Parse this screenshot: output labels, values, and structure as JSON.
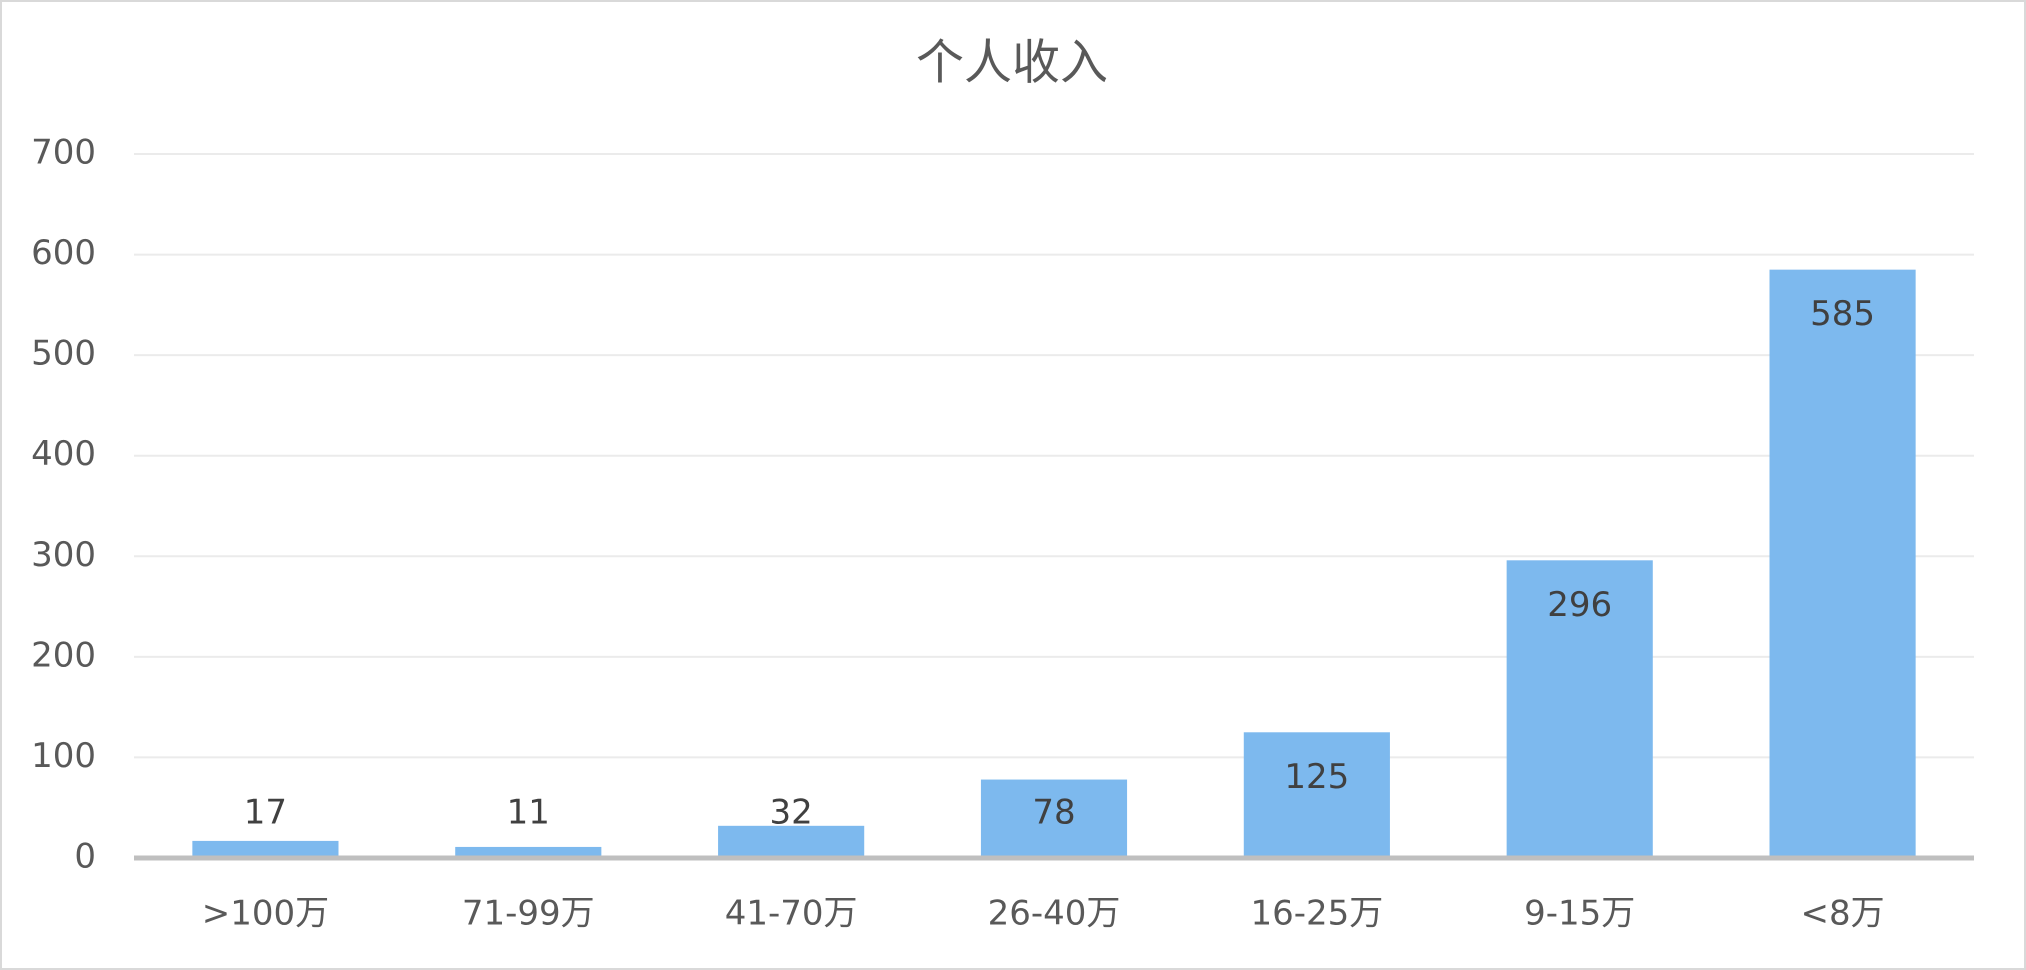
{
  "chart_data": {
    "type": "bar",
    "title": "个人收入",
    "categories": [
      ">100万",
      "71-99万",
      "41-70万",
      "26-40万",
      "16-25万",
      "9-15万",
      "<8万"
    ],
    "values": [
      17,
      11,
      32,
      78,
      125,
      296,
      585
    ],
    "color": "#7db9ee",
    "ylim": [
      0,
      700
    ],
    "yticks": [
      0,
      100,
      200,
      300,
      400,
      500,
      600,
      700
    ],
    "grid": true
  }
}
